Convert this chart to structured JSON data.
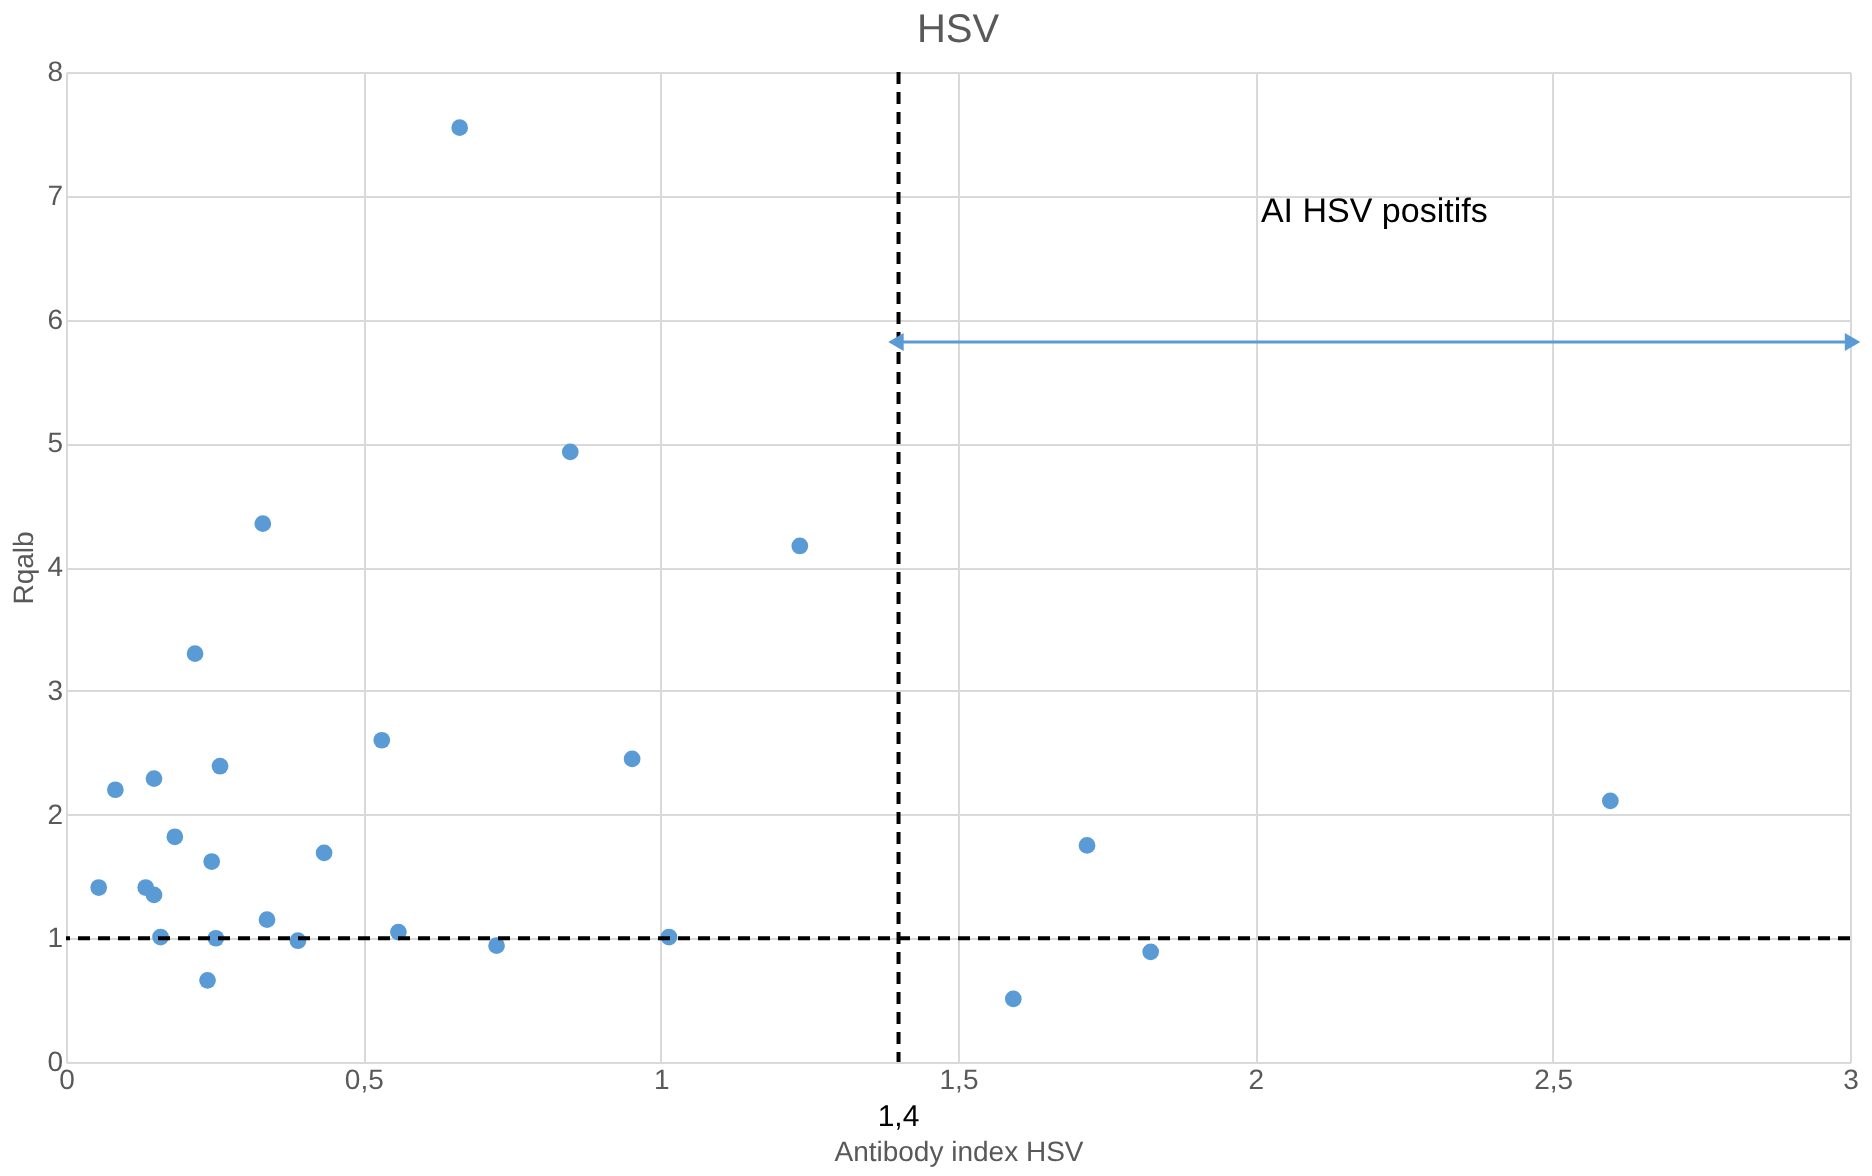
{
  "chart_data": {
    "type": "scatter",
    "title": "HSV",
    "xlabel": "Antibody index HSV",
    "ylabel": "Rqalb",
    "x": [
      0.662,
      0.848,
      0.331,
      1.234,
      0.217,
      0.531,
      0.952,
      0.259,
      0.083,
      0.148,
      0.183,
      0.434,
      0.245,
      0.055,
      0.134,
      0.148,
      0.338,
      0.159,
      0.252,
      0.39,
      0.559,
      0.724,
      1.014,
      0.238,
      1.593,
      1.717,
      1.824,
      2.597
    ],
    "series": [
      {
        "color": "#5b9bd5",
        "values": [
          7.55,
          4.93,
          4.35,
          4.17,
          3.3,
          2.6,
          2.45,
          2.39,
          2.2,
          2.29,
          1.82,
          1.69,
          1.62,
          1.41,
          1.41,
          1.35,
          1.15,
          1.01,
          1.0,
          0.98,
          1.05,
          0.94,
          1.01,
          0.66,
          0.51,
          1.75,
          0.89,
          2.11
        ]
      }
    ],
    "xlim": [
      0,
      3
    ],
    "ylim": [
      0,
      8
    ],
    "xticks": [
      0,
      {
        "value": 0.5,
        "label": "0,5"
      },
      1,
      {
        "value": 1.5,
        "label": "1,5"
      },
      2,
      {
        "value": 2.5,
        "label": "2,5"
      },
      3
    ],
    "yticks": [
      0,
      1,
      2,
      3,
      4,
      5,
      6,
      7,
      8
    ],
    "ref_lines": [
      {
        "axis": "x",
        "value": 1.4,
        "label": "1,4",
        "color": "#000000",
        "line_style": "dashed"
      },
      {
        "axis": "y",
        "value": 1,
        "color": "#000000",
        "line_style": "dashed"
      }
    ],
    "annotations": [
      "AI HSV positifs"
    ],
    "grid": true,
    "marker": "circle"
  }
}
